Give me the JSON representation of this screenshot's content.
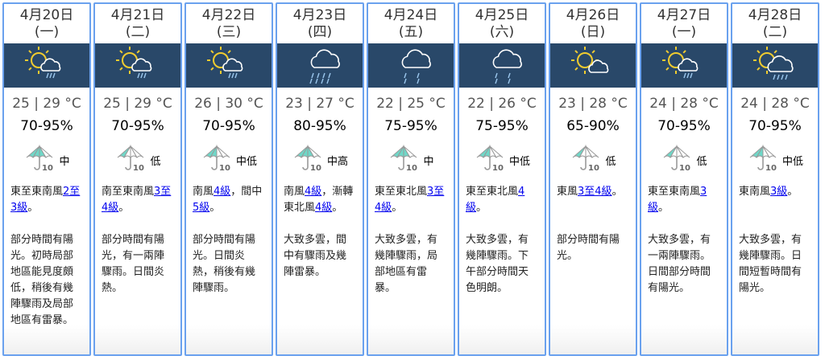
{
  "colors": {
    "border": "#6aa1ee",
    "band": "#294869",
    "link": "#0000ee",
    "umbrella_fill": "#6fd8c8"
  },
  "days": [
    {
      "date": "4月20日",
      "weekday": "(一)",
      "icon": "sun-cloud-rain-icon",
      "temp": "25 | 29 °C",
      "humidity": "70-95%",
      "psr": "中",
      "psr_fill": 0.75,
      "wind": [
        {
          "t": "東至東南風"
        },
        {
          "t": "2至3級",
          "link": true
        },
        {
          "t": "。"
        }
      ],
      "desc": "部分時間有陽光。初時局部地區能見度頗低，稍後有幾陣驟雨及局部地區有雷暴。"
    },
    {
      "date": "4月21日",
      "weekday": "(二)",
      "icon": "sun-cloud-rain-icon",
      "temp": "25 | 29 °C",
      "humidity": "70-95%",
      "psr": "低",
      "psr_fill": 0.25,
      "wind": [
        {
          "t": "南至東南風"
        },
        {
          "t": "3至4級",
          "link": true
        },
        {
          "t": "。"
        }
      ],
      "desc": "部分時間有陽光，有一兩陣驟雨。日間炎熱。"
    },
    {
      "date": "4月22日",
      "weekday": "(三)",
      "icon": "sun-cloud-rain-icon",
      "temp": "26 | 30 °C",
      "humidity": "70-95%",
      "psr": "中低",
      "psr_fill": 0.5,
      "wind": [
        {
          "t": "南風"
        },
        {
          "t": "4級",
          "link": true
        },
        {
          "t": "，間中"
        },
        {
          "t": "5級",
          "link": true
        },
        {
          "t": "。"
        }
      ],
      "desc": "部分時間有陽光。日間炎熱，稍後有幾陣驟雨。"
    },
    {
      "date": "4月23日",
      "weekday": "(四)",
      "icon": "heavy-rain-icon",
      "temp": "23 | 27 °C",
      "humidity": "80-95%",
      "psr": "中高",
      "psr_fill": 0.85,
      "wind": [
        {
          "t": "南風"
        },
        {
          "t": "4級",
          "link": true
        },
        {
          "t": "，漸轉東北風"
        },
        {
          "t": "4級",
          "link": true
        },
        {
          "t": "。"
        }
      ],
      "desc": "大致多雲，間中有驟雨及幾陣雷暴。"
    },
    {
      "date": "4月24日",
      "weekday": "(五)",
      "icon": "showers-icon",
      "temp": "22 | 25 °C",
      "humidity": "75-95%",
      "psr": "中",
      "psr_fill": 0.75,
      "wind": [
        {
          "t": "東至東北風"
        },
        {
          "t": "3至4級",
          "link": true
        },
        {
          "t": "。"
        }
      ],
      "desc": "大致多雲，有幾陣驟雨，局部地區有雷暴。"
    },
    {
      "date": "4月25日",
      "weekday": "(六)",
      "icon": "showers-icon",
      "temp": "22 | 26 °C",
      "humidity": "75-95%",
      "psr": "中低",
      "psr_fill": 0.5,
      "wind": [
        {
          "t": "東至東北風"
        },
        {
          "t": "4級",
          "link": true
        },
        {
          "t": "。"
        }
      ],
      "desc": "大致多雲，有幾陣驟雨。下午部分時間天色明朗。"
    },
    {
      "date": "4月26日",
      "weekday": "(日)",
      "icon": "sun-cloud-icon",
      "temp": "23 | 28 °C",
      "humidity": "65-90%",
      "psr": "低",
      "psr_fill": 0.25,
      "wind": [
        {
          "t": "東風"
        },
        {
          "t": "3至4級",
          "link": true
        },
        {
          "t": "。"
        }
      ],
      "desc": "部分時間有陽光。"
    },
    {
      "date": "4月27日",
      "weekday": "(一)",
      "icon": "sun-cloud-rain-icon",
      "temp": "24 | 28 °C",
      "humidity": "70-95%",
      "psr": "低",
      "psr_fill": 0.25,
      "wind": [
        {
          "t": "東至東南風"
        },
        {
          "t": "3級",
          "link": true
        },
        {
          "t": "。"
        }
      ],
      "desc": "大致多雲，有一兩陣驟雨。日間部分時間有陽光。"
    },
    {
      "date": "4月28日",
      "weekday": "(二)",
      "icon": "sun-big-cloud-rain-icon",
      "temp": "24 | 28 °C",
      "humidity": "70-95%",
      "psr": "中低",
      "psr_fill": 0.5,
      "wind": [
        {
          "t": "東南風"
        },
        {
          "t": "3級",
          "link": true
        },
        {
          "t": "。"
        }
      ],
      "desc": "大致多雲，有幾陣驟雨。日間短暫時間有陽光。"
    }
  ]
}
